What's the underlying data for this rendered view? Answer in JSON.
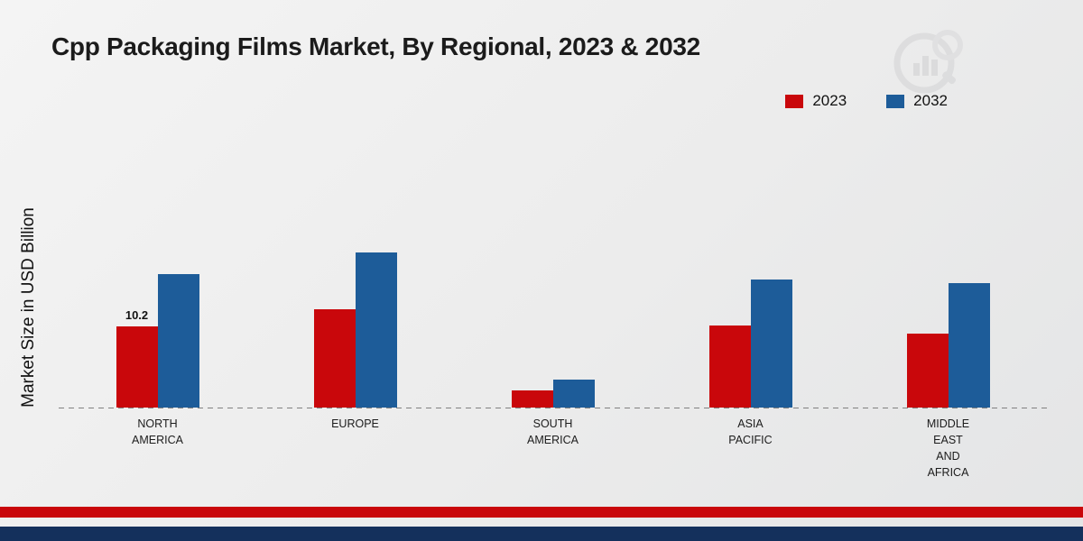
{
  "page": {
    "title": "Cpp Packaging Films Market, By Regional, 2023 & 2032"
  },
  "chart_data": {
    "type": "bar",
    "title": "Cpp Packaging Films Market, By Regional, 2023 & 2032",
    "xlabel": "",
    "ylabel": "Market Size in USD Billion",
    "categories": [
      "NORTH AMERICA",
      "EUROPE",
      "SOUTH AMERICA",
      "ASIA PACIFIC",
      "MIDDLE EAST AND AFRICA"
    ],
    "category_label_lines": [
      [
        "NORTH",
        "AMERICA"
      ],
      [
        "EUROPE"
      ],
      [
        "SOUTH",
        "AMERICA"
      ],
      [
        "ASIA",
        "PACIFIC"
      ],
      [
        "MIDDLE",
        "EAST",
        "AND",
        "AFRICA"
      ]
    ],
    "series": [
      {
        "name": "2023",
        "color": "#c9070b",
        "values": [
          10.2,
          12.4,
          2.2,
          10.3,
          9.3
        ]
      },
      {
        "name": "2032",
        "color": "#1d5c99",
        "values": [
          16.8,
          19.6,
          3.5,
          16.1,
          15.7
        ]
      }
    ],
    "data_labels": [
      {
        "series": 0,
        "category": 0,
        "text": "10.2"
      }
    ],
    "ylim": [
      0,
      22
    ],
    "grid": false,
    "baseline_style": "dashed",
    "legend_position": "top-right"
  },
  "footer": {
    "red_band_color": "#c9070b",
    "navy_band_color": "#14305c"
  }
}
